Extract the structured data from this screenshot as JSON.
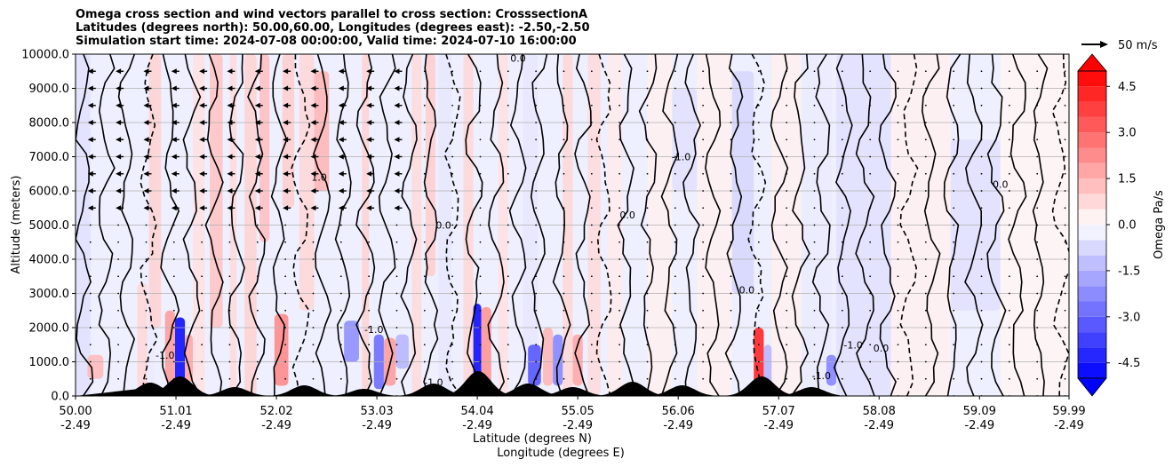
{
  "chart_data": {
    "type": "heatmap",
    "title_lines": [
      "Omega cross section and wind vectors parallel to cross section: CrosssectionA",
      "Latitudes (degrees north): 50.00,60.00, Longitudes (degrees east): -2.50,-2.50",
      "Simulation start time: 2024-07-08 00:00:00, Valid time: 2024-07-10 16:00:00"
    ],
    "ylabel": "Altitude (meters)",
    "xlabel_line1": "Latitude (degrees N)",
    "xlabel_line2": "Longitude (degrees E)",
    "ylim": [
      0,
      10000
    ],
    "y_ticks": [
      {
        "value": 0,
        "label": "0.0"
      },
      {
        "value": 1000,
        "label": "1000.0"
      },
      {
        "value": 2000,
        "label": "2000.0"
      },
      {
        "value": 3000,
        "label": "3000.0"
      },
      {
        "value": 4000,
        "label": "4000.0"
      },
      {
        "value": 5000,
        "label": "5000.0"
      },
      {
        "value": 6000,
        "label": "6000.0"
      },
      {
        "value": 7000,
        "label": "7000.0"
      },
      {
        "value": 8000,
        "label": "8000.0"
      },
      {
        "value": 9000,
        "label": "9000.0"
      },
      {
        "value": 10000,
        "label": "10000.0"
      }
    ],
    "xlim": [
      50.0,
      59.99
    ],
    "x_ticks": [
      {
        "lat": 50.0,
        "lat_label": "50.00",
        "lon_label": "-2.49"
      },
      {
        "lat": 51.01,
        "lat_label": "51.01",
        "lon_label": "-2.49"
      },
      {
        "lat": 52.02,
        "lat_label": "52.02",
        "lon_label": "-2.49"
      },
      {
        "lat": 53.03,
        "lat_label": "53.03",
        "lon_label": "-2.49"
      },
      {
        "lat": 54.04,
        "lat_label": "54.04",
        "lon_label": "-2.49"
      },
      {
        "lat": 55.05,
        "lat_label": "55.05",
        "lon_label": "-2.49"
      },
      {
        "lat": 56.06,
        "lat_label": "56.06",
        "lon_label": "-2.49"
      },
      {
        "lat": 57.07,
        "lat_label": "57.07",
        "lon_label": "-2.49"
      },
      {
        "lat": 58.08,
        "lat_label": "58.08",
        "lon_label": "-2.49"
      },
      {
        "lat": 59.09,
        "lat_label": "59.09",
        "lon_label": "-2.49"
      },
      {
        "lat": 59.99,
        "lat_label": "59.99",
        "lon_label": "-2.49"
      }
    ],
    "grid": "horizontal",
    "colorbar": {
      "label": "Omega Pa/s",
      "range": [
        -5.0,
        5.0
      ],
      "tick_labels": [
        "-4.5",
        "-3.0",
        "-1.5",
        "0.0",
        "1.5",
        "3.0",
        "4.5"
      ],
      "tick_values": [
        -4.5,
        -3.0,
        -1.5,
        0.0,
        1.5,
        3.0,
        4.5
      ],
      "extend": "both",
      "negative_color": "#0000ff",
      "positive_color": "#ff0000"
    },
    "vector_key": {
      "label": "50 m/s"
    },
    "contour_labels": [
      {
        "text": "0.0",
        "lat": 54.45,
        "alt": 9880
      },
      {
        "text": "-1.0",
        "lat": 56.09,
        "alt": 7000
      },
      {
        "text": "-1.0",
        "lat": 57.82,
        "alt": 1500
      },
      {
        "text": "-1.0",
        "lat": 57.5,
        "alt": 600
      },
      {
        "text": "-1.0",
        "lat": 53.6,
        "alt": 400
      },
      {
        "text": "-1.0",
        "lat": 50.9,
        "alt": 1200
      },
      {
        "text": "-1.0",
        "lat": 53.0,
        "alt": 1950
      },
      {
        "text": "0.0",
        "lat": 53.7,
        "alt": 5000
      },
      {
        "text": "0.0",
        "lat": 55.55,
        "alt": 5300
      },
      {
        "text": "0.0",
        "lat": 58.1,
        "alt": 1400
      },
      {
        "text": "1.0",
        "lat": 52.45,
        "alt": 6400
      },
      {
        "text": "0.0",
        "lat": 56.75,
        "alt": 3100
      },
      {
        "text": "0.0",
        "lat": 59.3,
        "alt": 6200
      }
    ],
    "omega_cells": [
      {
        "lat0": 50.0,
        "lat1": 50.15,
        "alt0": 0,
        "alt1": 10000,
        "value": -0.6
      },
      {
        "lat0": 50.12,
        "lat1": 50.28,
        "alt0": 500,
        "alt1": 1200,
        "value": 1.4
      },
      {
        "lat0": 50.62,
        "lat1": 50.72,
        "alt0": 0,
        "alt1": 3300,
        "value": 0.8
      },
      {
        "lat0": 50.72,
        "lat1": 50.8,
        "alt0": 0,
        "alt1": 9000,
        "value": -0.4
      },
      {
        "lat0": 50.74,
        "lat1": 50.86,
        "alt0": 2000,
        "alt1": 10000,
        "value": 0.9
      },
      {
        "lat0": 51.0,
        "lat1": 51.1,
        "alt0": 300,
        "alt1": 2300,
        "value": -5.0
      },
      {
        "lat0": 50.9,
        "lat1": 51.0,
        "alt0": 400,
        "alt1": 2500,
        "value": 2.0
      },
      {
        "lat0": 51.1,
        "lat1": 51.18,
        "alt0": 400,
        "alt1": 1800,
        "value": 1.8
      },
      {
        "lat0": 51.18,
        "lat1": 51.3,
        "alt0": 0,
        "alt1": 10000,
        "value": 0.6
      },
      {
        "lat0": 51.35,
        "lat1": 51.48,
        "alt0": 2000,
        "alt1": 10000,
        "value": 1.2
      },
      {
        "lat0": 51.55,
        "lat1": 51.62,
        "alt0": 0,
        "alt1": 10000,
        "value": 0.7
      },
      {
        "lat0": 51.7,
        "lat1": 51.82,
        "alt0": 0,
        "alt1": 10000,
        "value": 0.9
      },
      {
        "lat0": 51.85,
        "lat1": 51.95,
        "alt0": 4500,
        "alt1": 10000,
        "value": 1.3
      },
      {
        "lat0": 52.0,
        "lat1": 52.14,
        "alt0": 300,
        "alt1": 2400,
        "value": 2.4
      },
      {
        "lat0": 52.08,
        "lat1": 52.2,
        "alt0": 5500,
        "alt1": 10000,
        "value": 1.0
      },
      {
        "lat0": 52.25,
        "lat1": 52.4,
        "alt0": 2500,
        "alt1": 10000,
        "value": 0.8
      },
      {
        "lat0": 52.4,
        "lat1": 52.55,
        "alt0": 6000,
        "alt1": 9500,
        "value": 1.5
      },
      {
        "lat0": 52.7,
        "lat1": 52.85,
        "alt0": 1000,
        "alt1": 2200,
        "value": -2.3
      },
      {
        "lat0": 52.88,
        "lat1": 52.95,
        "alt0": 0,
        "alt1": 10000,
        "value": 0.9
      },
      {
        "lat0": 53.0,
        "lat1": 53.1,
        "alt0": 200,
        "alt1": 1800,
        "value": -3.0
      },
      {
        "lat0": 53.1,
        "lat1": 53.22,
        "alt0": 300,
        "alt1": 1700,
        "value": 2.0
      },
      {
        "lat0": 53.22,
        "lat1": 53.35,
        "alt0": 800,
        "alt1": 1800,
        "value": -1.5
      },
      {
        "lat0": 53.38,
        "lat1": 53.48,
        "alt0": 0,
        "alt1": 10000,
        "value": 0.7
      },
      {
        "lat0": 53.52,
        "lat1": 53.62,
        "alt0": 3500,
        "alt1": 10000,
        "value": 1.0
      },
      {
        "lat0": 53.65,
        "lat1": 53.78,
        "alt0": 0,
        "alt1": 10000,
        "value": -0.5
      },
      {
        "lat0": 53.9,
        "lat1": 54.0,
        "alt0": 0,
        "alt1": 10000,
        "value": 0.8
      },
      {
        "lat0": 54.0,
        "lat1": 54.08,
        "alt0": 300,
        "alt1": 2700,
        "value": -5.0
      },
      {
        "lat0": 54.08,
        "lat1": 54.18,
        "alt0": 300,
        "alt1": 2600,
        "value": 2.2
      },
      {
        "lat0": 54.25,
        "lat1": 54.35,
        "alt0": 0,
        "alt1": 10000,
        "value": 0.6
      },
      {
        "lat0": 54.5,
        "lat1": 54.65,
        "alt0": 0,
        "alt1": 10000,
        "value": -0.5
      },
      {
        "lat0": 54.55,
        "lat1": 54.68,
        "alt0": 300,
        "alt1": 1500,
        "value": -3.5
      },
      {
        "lat0": 54.7,
        "lat1": 54.8,
        "alt0": 300,
        "alt1": 2000,
        "value": 1.5
      },
      {
        "lat0": 54.8,
        "lat1": 54.9,
        "alt0": 300,
        "alt1": 1800,
        "value": -2.5
      },
      {
        "lat0": 54.9,
        "lat1": 55.0,
        "alt0": 0,
        "alt1": 10000,
        "value": 0.8
      },
      {
        "lat0": 55.0,
        "lat1": 55.1,
        "alt0": 300,
        "alt1": 1800,
        "value": 1.8
      },
      {
        "lat0": 55.15,
        "lat1": 55.28,
        "alt0": 0,
        "alt1": 10000,
        "value": 0.7
      },
      {
        "lat0": 55.35,
        "lat1": 55.5,
        "alt0": 0,
        "alt1": 10000,
        "value": 0.4
      },
      {
        "lat0": 55.75,
        "lat1": 56.0,
        "alt0": 0,
        "alt1": 10000,
        "value": 0.3
      },
      {
        "lat0": 56.0,
        "lat1": 56.25,
        "alt0": 6000,
        "alt1": 9000,
        "value": -0.6
      },
      {
        "lat0": 56.25,
        "lat1": 56.6,
        "alt0": 0,
        "alt1": 10000,
        "value": 0.3
      },
      {
        "lat0": 56.6,
        "lat1": 56.82,
        "alt0": 3000,
        "alt1": 9500,
        "value": -0.8
      },
      {
        "lat0": 56.82,
        "lat1": 56.92,
        "alt0": 300,
        "alt1": 2000,
        "value": 4.5
      },
      {
        "lat0": 56.92,
        "lat1": 57.0,
        "alt0": 300,
        "alt1": 1500,
        "value": -1.5
      },
      {
        "lat0": 57.0,
        "lat1": 57.3,
        "alt0": 0,
        "alt1": 10000,
        "value": 0.3
      },
      {
        "lat0": 57.3,
        "lat1": 57.6,
        "alt0": 0,
        "alt1": 10000,
        "value": -0.4
      },
      {
        "lat0": 57.55,
        "lat1": 57.65,
        "alt0": 300,
        "alt1": 1200,
        "value": -2.5
      },
      {
        "lat0": 57.65,
        "lat1": 58.2,
        "alt0": 0,
        "alt1": 10000,
        "value": -0.6
      },
      {
        "lat0": 58.2,
        "lat1": 58.8,
        "alt0": 0,
        "alt1": 10000,
        "value": 0.3
      },
      {
        "lat0": 58.8,
        "lat1": 59.3,
        "alt0": 2500,
        "alt1": 7500,
        "value": -0.6
      },
      {
        "lat0": 59.3,
        "lat1": 59.99,
        "alt0": 0,
        "alt1": 10000,
        "value": 0.2
      }
    ]
  }
}
